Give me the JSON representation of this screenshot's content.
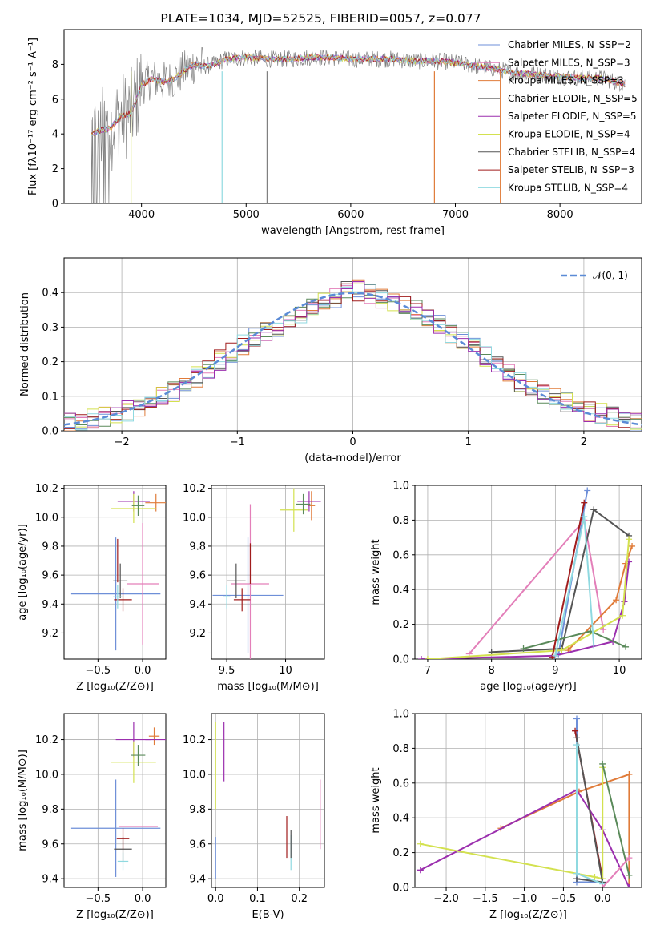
{
  "colors": [
    "#6e8fd8",
    "#e07b39",
    "#888888",
    "#e37fb9",
    "#8fbc8f",
    "#d3e14f",
    "#555555",
    "#a01c1c",
    "#8fd9e0",
    "#9b2fae",
    "#5a8a5a"
  ],
  "chart_data": [
    {
      "id": "spectrum",
      "type": "line",
      "title": "PLATE=1034, MJD=52525, FIBERID=0057, z=0.077",
      "xlabel": "wavelength [Angstrom, rest frame]",
      "ylabel": "Flux [fλ10⁻¹⁷ erg cm⁻² s⁻¹ A⁻¹]",
      "xlim": [
        3260,
        8780
      ],
      "ylim": [
        0,
        10
      ],
      "xticks": [
        4000,
        5000,
        6000,
        7000,
        8000
      ],
      "yticks": [
        0,
        2,
        4,
        6,
        8
      ],
      "grid": false,
      "legend_position": "top-right",
      "legend": [
        "Chabrier MILES, N_SSP=2",
        "Salpeter MILES, N_SSP=3",
        "Kroupa MILES, N_SSP=3",
        "Chabrier ELODIE, N_SSP=5",
        "Salpeter ELODIE, N_SSP=5",
        "Kroupa ELODIE, N_SSP=4",
        "Chabrier STELIB, N_SSP=4",
        "Salpeter STELIB, N_SSP=3",
        "Kroupa STELIB, N_SSP=4"
      ],
      "legend_colors": [
        "#6e8fd8",
        "#e37fb9",
        "#e07b39",
        "#555555",
        "#9b2fae",
        "#d3e14f",
        "#555555",
        "#a01c1c",
        "#8fd9e0"
      ],
      "series_continuum": {
        "x": [
          3520,
          3600,
          3700,
          3800,
          3900,
          4000,
          4100,
          4200,
          4300,
          4400,
          4500,
          4600,
          4700,
          4800,
          5000,
          5200,
          5400,
          5600,
          5800,
          6000,
          6200,
          6400,
          6600,
          6800,
          7000,
          7200,
          7400,
          7600,
          7800,
          8000,
          8200,
          8400,
          8600,
          8780
        ],
        "y": [
          4.0,
          4.2,
          4.3,
          5.0,
          5.2,
          6.8,
          7.2,
          7.0,
          7.1,
          7.6,
          8.0,
          7.9,
          8.0,
          8.3,
          8.4,
          8.3,
          8.3,
          8.4,
          8.4,
          8.3,
          8.3,
          8.3,
          8.2,
          8.2,
          8.1,
          7.9,
          7.7,
          7.5,
          7.4,
          7.3,
          7.2,
          7.2,
          6.9,
          6.6
        ]
      }
    },
    {
      "id": "residuals",
      "type": "line",
      "xlabel": "(data-model)/error",
      "ylabel": "Normed distribution",
      "xlim": [
        -2.5,
        2.5
      ],
      "ylim": [
        0,
        0.5
      ],
      "xticks": [
        -2,
        -1,
        0,
        1,
        2
      ],
      "yticks": [
        0.0,
        0.1,
        0.2,
        0.3,
        0.4
      ],
      "grid": true,
      "legend_position": "top-right",
      "legend": [
        "𝒩(0, 1)"
      ],
      "gaussian": {
        "mean": 0,
        "sigma": 1
      },
      "bin_width": 0.1,
      "hist_envelope_x": [
        -2.5,
        -2.0,
        -1.5,
        -1.0,
        -0.5,
        0.0,
        0.5,
        1.0,
        1.5,
        2.0,
        2.5
      ],
      "hist_envelope_y": [
        0.025,
        0.05,
        0.12,
        0.24,
        0.33,
        0.41,
        0.36,
        0.25,
        0.13,
        0.06,
        0.025
      ]
    },
    {
      "id": "age_vs_Z",
      "type": "scatter",
      "xlabel": "Z [log₁₀(Z/Z⊙)]",
      "ylabel": "age  [log₁₀(age/yr)]",
      "xlim": [
        -0.88,
        0.26
      ],
      "ylim": [
        9.02,
        10.22
      ],
      "xticks": [
        -0.5,
        0.0
      ],
      "xtick_labels": [
        "−0.5",
        "0.0"
      ],
      "yticks": [
        9.2,
        9.4,
        9.6,
        9.8,
        10.0,
        10.2
      ],
      "grid": true,
      "points": [
        {
          "x": -0.3,
          "y": 9.47,
          "xerr": 0.5,
          "yerr": 0.39,
          "color": "#6e8fd8"
        },
        {
          "x": 0.0,
          "y": 9.54,
          "xerr": 0.18,
          "yerr": 0.42,
          "color": "#e37fb9"
        },
        {
          "x": 0.15,
          "y": 10.1,
          "xerr": 0.12,
          "yerr": 0.06,
          "color": "#e07b39"
        },
        {
          "x": -0.25,
          "y": 9.56,
          "xerr": 0.08,
          "yerr": 0.12,
          "color": "#555555"
        },
        {
          "x": -0.1,
          "y": 10.11,
          "xerr": 0.18,
          "yerr": 0.07,
          "color": "#9b2fae"
        },
        {
          "x": -0.1,
          "y": 10.06,
          "xerr": 0.25,
          "yerr": 0.1,
          "color": "#d3e14f"
        },
        {
          "x": -0.05,
          "y": 10.08,
          "xerr": 0.07,
          "yerr": 0.07,
          "color": "#5a8a5a"
        },
        {
          "x": -0.22,
          "y": 9.43,
          "xerr": 0.1,
          "yerr": 0.08,
          "color": "#a01c1c"
        },
        {
          "x": -0.28,
          "y": 9.45,
          "xerr": 0.05,
          "yerr": 0.08,
          "color": "#8fd9e0"
        },
        {
          "x": -0.28,
          "y": 9.7,
          "xerr": 0.0,
          "yerr": 0.15,
          "color": "#a01c1c"
        }
      ]
    },
    {
      "id": "age_vs_mass",
      "type": "scatter",
      "xlabel": "mass [log₁₀(M/M⊙)]",
      "ylabel": "",
      "xlim": [
        9.37,
        10.33
      ],
      "ylim": [
        9.02,
        10.22
      ],
      "xticks": [
        9.5,
        10.0
      ],
      "yticks": [
        9.2,
        9.4,
        9.6,
        9.8,
        10.0,
        10.2
      ],
      "grid": true,
      "points": [
        {
          "x": 9.68,
          "y": 9.46,
          "xerr": 0.3,
          "yerr": 0.4,
          "color": "#6e8fd8"
        },
        {
          "x": 9.7,
          "y": 9.54,
          "xerr": 0.16,
          "yerr": 0.55,
          "color": "#e37fb9"
        },
        {
          "x": 10.22,
          "y": 10.08,
          "xerr": 0.03,
          "yerr": 0.1,
          "color": "#e07b39"
        },
        {
          "x": 9.58,
          "y": 9.56,
          "xerr": 0.08,
          "yerr": 0.12,
          "color": "#555555"
        },
        {
          "x": 10.2,
          "y": 10.11,
          "xerr": 0.1,
          "yerr": 0.07,
          "color": "#9b2fae"
        },
        {
          "x": 10.07,
          "y": 10.05,
          "xerr": 0.12,
          "yerr": 0.15,
          "color": "#d3e14f"
        },
        {
          "x": 10.15,
          "y": 10.09,
          "xerr": 0.06,
          "yerr": 0.07,
          "color": "#5a8a5a"
        },
        {
          "x": 9.63,
          "y": 9.43,
          "xerr": 0.07,
          "yerr": 0.08,
          "color": "#a01c1c"
        },
        {
          "x": 9.5,
          "y": 9.45,
          "xerr": 0.03,
          "yerr": 0.08,
          "color": "#8fd9e0"
        },
        {
          "x": 9.7,
          "y": 9.68,
          "xerr": 0.0,
          "yerr": 0.14,
          "color": "#a01c1c"
        }
      ]
    },
    {
      "id": "weight_vs_age",
      "type": "line",
      "xlabel": "age  [log₁₀(age/yr)]",
      "ylabel": "mass weight",
      "xlim": [
        6.8,
        10.35
      ],
      "ylim": [
        0,
        1.0
      ],
      "xticks": [
        7,
        8,
        9,
        10
      ],
      "yticks": [
        0.0,
        0.2,
        0.4,
        0.6,
        0.8,
        1.0
      ],
      "grid": true,
      "series": [
        {
          "color": "#6e8fd8",
          "x": [
            9.05,
            9.5
          ],
          "y": [
            0.03,
            0.97
          ]
        },
        {
          "color": "#e37fb9",
          "x": [
            7.65,
            9.45,
            9.75
          ],
          "y": [
            0.03,
            0.8,
            0.17
          ]
        },
        {
          "color": "#e07b39",
          "x": [
            9.2,
            9.95,
            10.1,
            10.2
          ],
          "y": [
            0.05,
            0.34,
            0.55,
            0.65
          ]
        },
        {
          "color": "#555555",
          "x": [
            8.0,
            9.1,
            9.6,
            10.15
          ],
          "y": [
            0.04,
            0.06,
            0.86,
            0.71
          ]
        },
        {
          "color": "#9b2fae",
          "x": [
            6.9,
            9.0,
            9.9,
            10.08,
            10.15
          ],
          "y": [
            0.0,
            0.02,
            0.1,
            0.33,
            0.56
          ]
        },
        {
          "color": "#d3e14f",
          "x": [
            7.0,
            9.1,
            10.05,
            10.15
          ],
          "y": [
            0.0,
            0.05,
            0.25,
            0.69
          ]
        },
        {
          "color": "#5a8a5a",
          "x": [
            8.5,
            9.55,
            10.1
          ],
          "y": [
            0.06,
            0.16,
            0.07
          ]
        },
        {
          "color": "#a01c1c",
          "x": [
            8.95,
            9.45
          ],
          "y": [
            0.01,
            0.9
          ]
        },
        {
          "color": "#8fd9e0",
          "x": [
            9.0,
            9.45,
            9.6
          ],
          "y": [
            0.02,
            0.82,
            0.08
          ]
        }
      ]
    },
    {
      "id": "mass_vs_Z",
      "type": "scatter",
      "xlabel": "Z [log₁₀(Z/Z⊙)]",
      "ylabel": "mass [log₁₀(M/M⊙)]",
      "xlim": [
        -0.88,
        0.26
      ],
      "ylim": [
        9.35,
        10.35
      ],
      "xticks": [
        -0.5,
        0.0
      ],
      "xtick_labels": [
        "−0.5",
        "0.0"
      ],
      "yticks": [
        9.4,
        9.6,
        9.8,
        10.0,
        10.2
      ],
      "grid": true,
      "points": [
        {
          "x": -0.3,
          "y": 9.69,
          "xerr": 0.5,
          "yerr": 0.28,
          "color": "#6e8fd8"
        },
        {
          "x": -0.05,
          "y": 9.7,
          "xerr": 0.22,
          "yerr": 0.0,
          "color": "#e37fb9"
        },
        {
          "x": 0.13,
          "y": 10.22,
          "xerr": 0.06,
          "yerr": 0.05,
          "color": "#e07b39"
        },
        {
          "x": -0.22,
          "y": 9.57,
          "xerr": 0.1,
          "yerr": 0.07,
          "color": "#555555"
        },
        {
          "x": -0.1,
          "y": 10.2,
          "xerr": 0.2,
          "yerr": 0.1,
          "color": "#9b2fae"
        },
        {
          "x": -0.1,
          "y": 10.07,
          "xerr": 0.25,
          "yerr": 0.12,
          "color": "#d3e14f"
        },
        {
          "x": -0.05,
          "y": 10.11,
          "xerr": 0.08,
          "yerr": 0.06,
          "color": "#5a8a5a"
        },
        {
          "x": -0.22,
          "y": 9.63,
          "xerr": 0.07,
          "yerr": 0.06,
          "color": "#a01c1c"
        },
        {
          "x": -0.22,
          "y": 9.5,
          "xerr": 0.06,
          "yerr": 0.05,
          "color": "#8fd9e0"
        },
        {
          "x": 0.15,
          "y": 10.2,
          "xerr": 0.12,
          "yerr": 0.0,
          "color": "#9b2fae"
        }
      ]
    },
    {
      "id": "mass_vs_ebv",
      "type": "scatter",
      "xlabel": "E(B-V)",
      "ylabel": "",
      "xlim": [
        -0.01,
        0.26
      ],
      "ylim": [
        9.35,
        10.35
      ],
      "xticks": [
        0.0,
        0.1,
        0.2
      ],
      "yticks": [
        9.4,
        9.6,
        9.8,
        10.0,
        10.2
      ],
      "grid": true,
      "points": [
        {
          "x": 0.0,
          "y": 9.52,
          "xerr": 0.0,
          "yerr": 0.12,
          "color": "#6e8fd8"
        },
        {
          "x": 0.0,
          "y": 10.05,
          "xerr": 0.0,
          "yerr": 0.25,
          "color": "#d3e14f"
        },
        {
          "x": 0.02,
          "y": 10.13,
          "xerr": 0.0,
          "yerr": 0.17,
          "color": "#9b2fae"
        },
        {
          "x": 0.17,
          "y": 9.64,
          "xerr": 0.0,
          "yerr": 0.12,
          "color": "#a01c1c"
        },
        {
          "x": 0.18,
          "y": 9.55,
          "xerr": 0.0,
          "yerr": 0.1,
          "color": "#8fd9e0"
        },
        {
          "x": 0.18,
          "y": 9.6,
          "xerr": 0.0,
          "yerr": 0.08,
          "color": "#555555"
        },
        {
          "x": 0.25,
          "y": 9.77,
          "xerr": 0.0,
          "yerr": 0.2,
          "color": "#e37fb9"
        }
      ]
    },
    {
      "id": "weight_vs_Z",
      "type": "line",
      "xlabel": "Z [log₁₀(Z/Z⊙)]",
      "ylabel": "mass weight",
      "xlim": [
        -2.4,
        0.5
      ],
      "ylim": [
        0,
        1.0
      ],
      "xticks": [
        -2.0,
        -1.5,
        -1.0,
        -0.5,
        0.0
      ],
      "xtick_labels": [
        "−2.0",
        "−1.5",
        "−1.0",
        "−0.5",
        "0.0"
      ],
      "yticks": [
        0.0,
        0.2,
        0.4,
        0.6,
        0.8,
        1.0
      ],
      "grid": true,
      "series": [
        {
          "color": "#6e8fd8",
          "x": [
            -0.33,
            -0.33,
            0.0
          ],
          "y": [
            0.97,
            0.03,
            0.03
          ]
        },
        {
          "color": "#e07b39",
          "x": [
            -1.3,
            -0.3,
            0.34,
            0.34
          ],
          "y": [
            0.34,
            0.55,
            0.65,
            0.0
          ]
        },
        {
          "color": "#a01c1c",
          "x": [
            -0.35,
            0.0
          ],
          "y": [
            0.9,
            0.05
          ]
        },
        {
          "color": "#9b2fae",
          "x": [
            -2.33,
            -0.33,
            0.0,
            0.34
          ],
          "y": [
            0.1,
            0.56,
            0.33,
            0.0
          ]
        },
        {
          "color": "#d3e14f",
          "x": [
            -2.33,
            -0.1,
            0.0,
            0.0
          ],
          "y": [
            0.25,
            0.06,
            0.05,
            0.69
          ]
        },
        {
          "color": "#5a8a5a",
          "x": [
            0.0,
            0.34
          ],
          "y": [
            0.71,
            0.07
          ]
        },
        {
          "color": "#555555",
          "x": [
            -0.33,
            0.0,
            -0.33
          ],
          "y": [
            0.86,
            0.03,
            0.05
          ]
        },
        {
          "color": "#8fd9e0",
          "x": [
            -0.33,
            -0.33,
            0.0
          ],
          "y": [
            0.82,
            0.08,
            0.02
          ]
        },
        {
          "color": "#e37fb9",
          "x": [
            0.34,
            0.0
          ],
          "y": [
            0.17,
            0.0
          ]
        }
      ]
    }
  ]
}
